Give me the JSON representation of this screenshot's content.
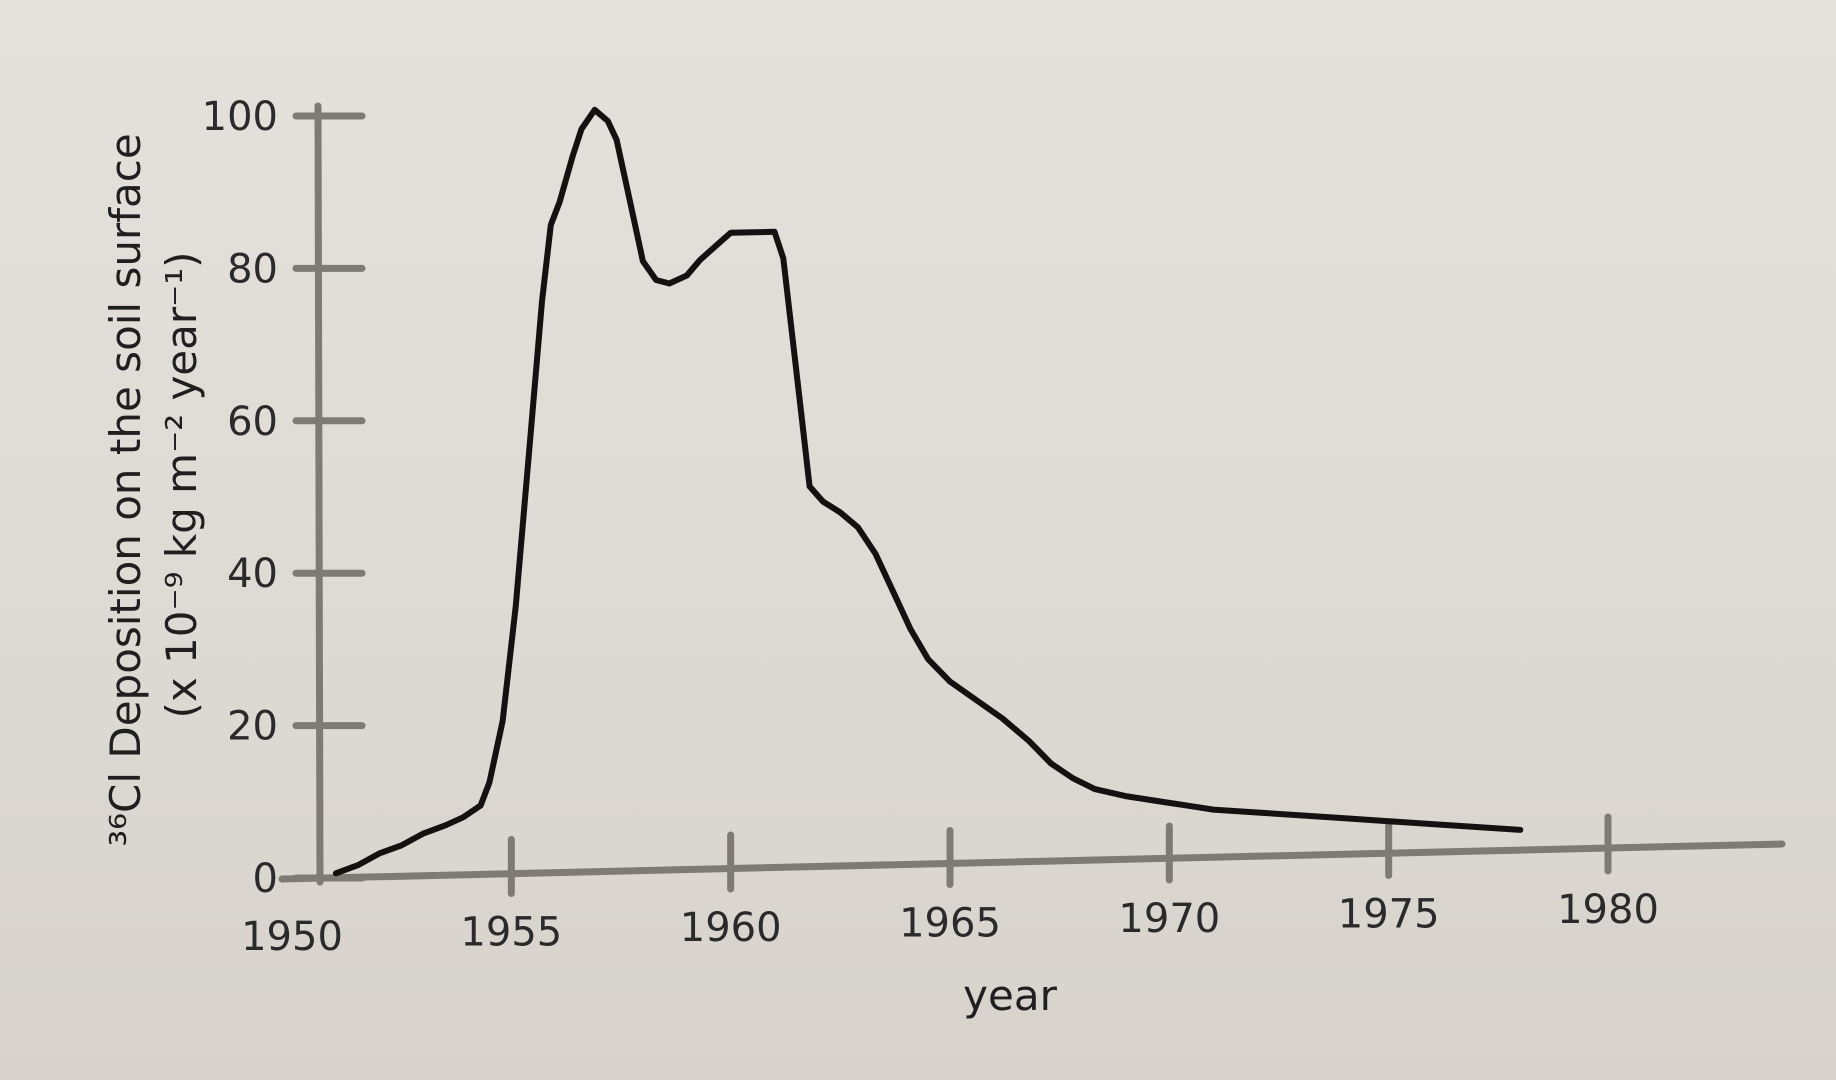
{
  "chart_data": {
    "type": "line",
    "xlabel": "year",
    "ylabel_line1": "³⁶Cl Deposition on the soil surface",
    "ylabel_line2": "(x 10⁻⁹ kg m⁻² year⁻¹)",
    "xlim": [
      1950,
      1980
    ],
    "ylim": [
      0,
      100
    ],
    "x_ticks": [
      "1950",
      "1955",
      "1960",
      "1965",
      "1970",
      "1975",
      "1980"
    ],
    "y_ticks": [
      "0",
      "20",
      "40",
      "60",
      "80",
      "100"
    ],
    "series": [
      {
        "x": [
          1951.0,
          1951.5,
          1952.0,
          1952.5,
          1953.0,
          1953.5,
          1953.9,
          1954.3,
          1954.5,
          1954.8,
          1955.1,
          1955.4,
          1955.7,
          1955.9,
          1956.1,
          1956.4,
          1956.6,
          1956.9,
          1957.2,
          1957.4,
          1957.7,
          1958.0,
          1958.3,
          1958.6,
          1959.0,
          1959.3,
          1959.7,
          1960.0,
          1960.4,
          1960.7,
          1961.0,
          1961.2,
          1961.4,
          1961.6,
          1961.8,
          1962.1,
          1962.5,
          1962.9,
          1963.3,
          1963.7,
          1964.1,
          1964.5,
          1965.0,
          1965.6,
          1966.2,
          1966.8,
          1967.3,
          1967.8,
          1968.3,
          1969.0,
          1969.5,
          1970.0,
          1970.5,
          1971.0,
          1972.0,
          1973.0,
          1974.0,
          1975.0,
          1976.0,
          1977.0,
          1978.0
        ],
        "y": [
          0.5,
          1.5,
          3.0,
          4.0,
          5.5,
          6.5,
          7.5,
          9.0,
          12.0,
          20.0,
          35.0,
          55.0,
          75.0,
          85.0,
          88.0,
          94.0,
          97.5,
          100.0,
          98.5,
          96.0,
          88.0,
          80.0,
          77.5,
          77.0,
          78.0,
          80.0,
          82.0,
          83.5,
          83.5,
          83.5,
          83.5,
          80.0,
          70.0,
          60.0,
          50.0,
          48.0,
          46.5,
          44.5,
          41.0,
          36.0,
          31.0,
          27.0,
          24.0,
          21.5,
          19.0,
          16.0,
          13.0,
          11.0,
          9.5,
          8.5,
          8.0,
          7.5,
          7.0,
          6.5,
          6.0,
          5.5,
          5.0,
          4.5,
          4.0,
          3.5,
          3.0
        ]
      }
    ]
  }
}
